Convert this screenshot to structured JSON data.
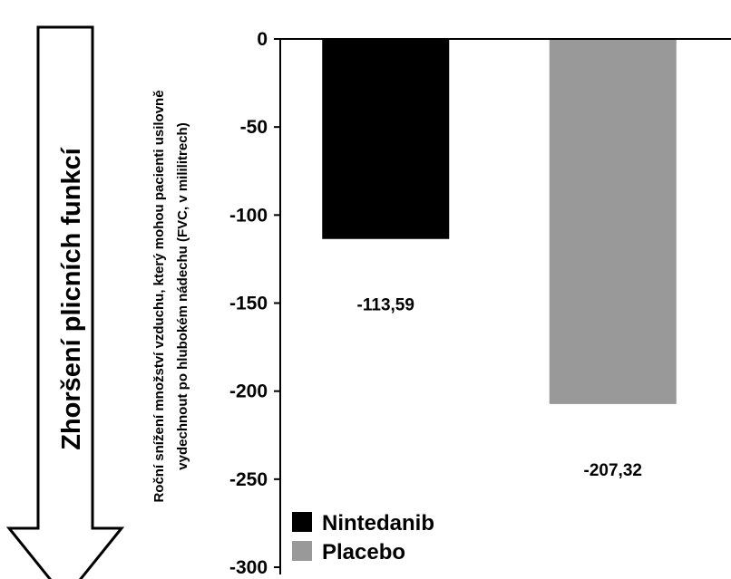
{
  "chart_data": {
    "type": "bar",
    "categories": [
      "Nintedanib",
      "Placebo"
    ],
    "values": [
      -113.59,
      -207.32
    ],
    "data_labels": [
      "-113,59",
      "-207,32"
    ],
    "colors": [
      "#000000",
      "#999999"
    ],
    "ylim": [
      -300,
      0
    ],
    "yticks": [
      0,
      -50,
      -100,
      -150,
      -200,
      -250,
      -300
    ],
    "ytick_labels": [
      "0",
      "-50",
      "-100",
      "-150",
      "-200",
      "-250",
      "-300"
    ],
    "ylabel_lines": [
      "Roční snížení množství vzduchu, který mohou pacienti usilovně",
      "vydechnout po hlubokém nádechu (FVC, v mililitrech)"
    ],
    "xlabel": "",
    "title": "",
    "legend": {
      "placement": "bottom-left",
      "entries": [
        {
          "label": "Nintedanib",
          "color": "#000000"
        },
        {
          "label": "Placebo",
          "color": "#999999"
        }
      ]
    },
    "grid": false
  },
  "arrow": {
    "label": "Zhoršení plicních funkcí"
  }
}
